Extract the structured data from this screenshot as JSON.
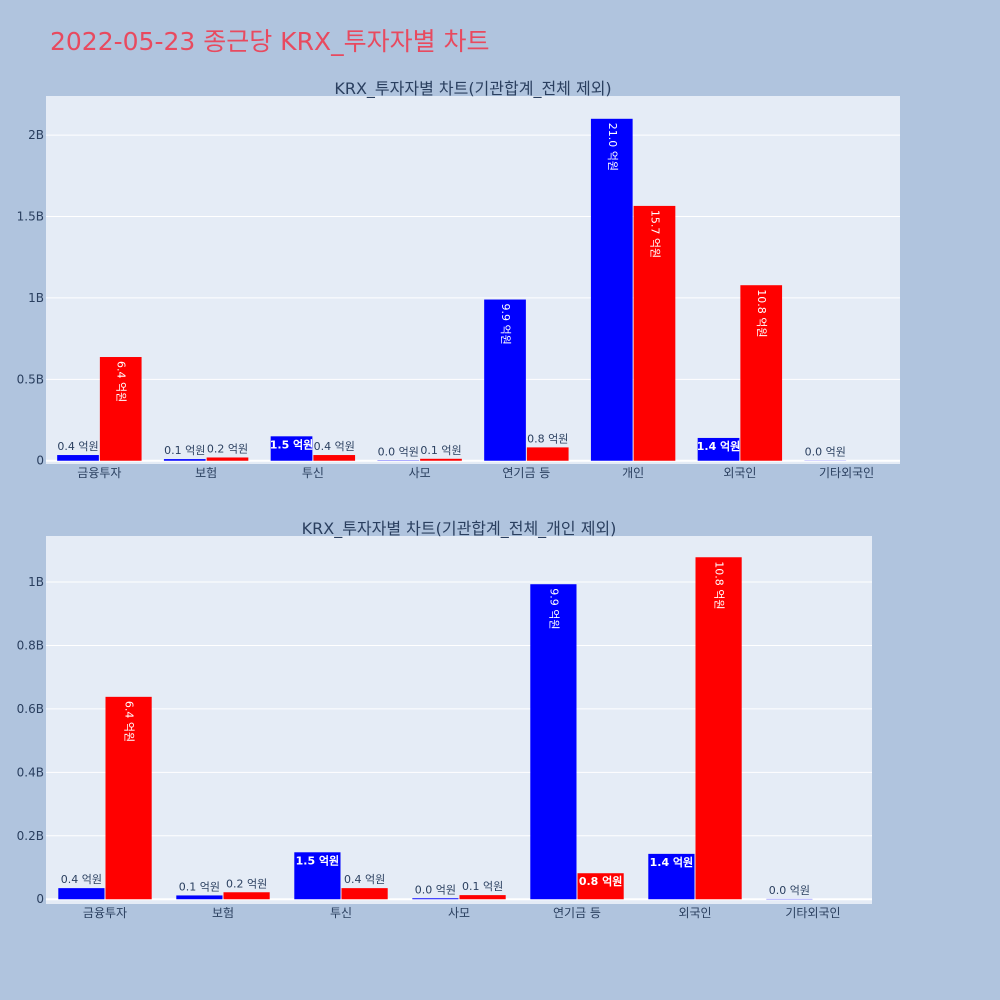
{
  "page": {
    "title": "2022-05-23 종근당 KRX_투자자별 차트"
  },
  "colors": {
    "background": "#b0c4de",
    "plot_background": "#e5ecf6",
    "grid": "#ffffff",
    "title": "#e84a5f",
    "series_a": "#0000ff",
    "series_b": "#ff0000",
    "text": "#2a3f5f"
  },
  "chart_data": [
    {
      "type": "bar",
      "title": "KRX_투자자별 차트(기관합계_전체 제외)",
      "categories": [
        "금융투자",
        "보험",
        "투신",
        "사모",
        "연기금 등",
        "개인",
        "외국인",
        "기타외국인"
      ],
      "series": [
        {
          "values": [
            35000000,
            10000000,
            150000000,
            2000000,
            990000000,
            2100000000,
            140000000,
            1000000
          ],
          "labels": [
            "0.4 억원",
            "0.1 억원",
            "1.5 억원",
            "0.0 억원",
            "9.9 억원",
            "21.0 억원",
            "1.4 억원",
            "0.0 억원"
          ],
          "color": "#0000ff"
        },
        {
          "values": [
            637000000,
            20000000,
            35000000,
            12000000,
            82000000,
            1565000000,
            1078000000,
            0
          ],
          "labels": [
            "6.4 억원",
            "0.2 억원",
            "0.4 억원",
            "0.1 억원",
            "0.8 억원",
            "15.7 억원",
            "10.8 억원",
            ""
          ],
          "color": "#ff0000"
        }
      ],
      "ylim": [
        -20000000,
        2240000000
      ],
      "yticks": [
        0,
        500000000,
        1000000000,
        1500000000,
        2000000000
      ],
      "ytick_labels": [
        "0",
        "0.5B",
        "1B",
        "1.5B",
        "2B"
      ],
      "xlabel": "",
      "ylabel": "",
      "grid": true
    },
    {
      "type": "bar",
      "title": "KRX_투자자별 차트(기관합계_전체_개인 제외)",
      "categories": [
        "금융투자",
        "보험",
        "투신",
        "사모",
        "연기금 등",
        "외국인",
        "기타외국인"
      ],
      "series": [
        {
          "values": [
            35000000,
            12000000,
            148000000,
            3000000,
            993000000,
            143000000,
            1000000
          ],
          "labels": [
            "0.4 억원",
            "0.1 억원",
            "1.5 억원",
            "0.0 억원",
            "9.9 억원",
            "1.4 억원",
            "0.0 억원"
          ],
          "color": "#0000ff"
        },
        {
          "values": [
            638000000,
            22000000,
            35000000,
            13000000,
            82000000,
            1078000000,
            0
          ],
          "labels": [
            "6.4 억원",
            "0.2 억원",
            "0.4 억원",
            "0.1 억원",
            "0.8 억원",
            "10.8 억원",
            ""
          ],
          "color": "#ff0000"
        }
      ],
      "ylim": [
        -15000000,
        1145000000
      ],
      "yticks": [
        0,
        200000000,
        400000000,
        600000000,
        800000000,
        1000000000
      ],
      "ytick_labels": [
        "0",
        "0.2B",
        "0.4B",
        "0.6B",
        "0.8B",
        "1B"
      ],
      "xlabel": "",
      "ylabel": "",
      "grid": true
    }
  ]
}
